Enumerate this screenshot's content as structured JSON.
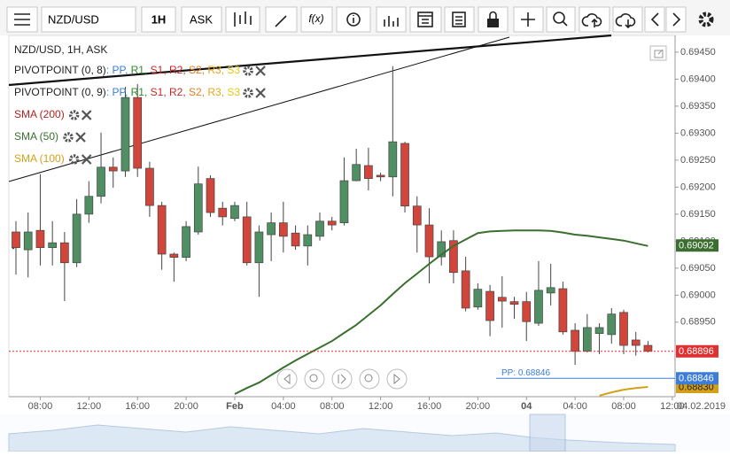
{
  "toolbar": {
    "symbol": "NZD/USD",
    "interval": "1H",
    "price": "ASK",
    "fx": "f(x)"
  },
  "navigator": {
    "date": "04.02.2019"
  },
  "chart_data": {
    "type": "candlestick",
    "title": "NZD/USD, 1H, ASK",
    "categories": [
      null,
      null,
      "08:00",
      null,
      null,
      null,
      "12:00",
      null,
      null,
      null,
      "16:00",
      null,
      null,
      null,
      "20:00",
      null,
      null,
      null,
      "Feb",
      null,
      null,
      null,
      "04:00",
      null,
      null,
      null,
      "08:00",
      null,
      null,
      null,
      "12:00",
      null,
      null,
      null,
      "16:00",
      null,
      null,
      null,
      "20:00",
      null,
      null,
      null,
      "04",
      null,
      null,
      null,
      "04:00",
      null,
      null,
      null,
      "08:00",
      null,
      null,
      null,
      "12:00"
    ],
    "open": [
      0.69117,
      0.69084,
      0.6912,
      0.69088,
      0.69097,
      0.6906,
      0.6915,
      0.69183,
      0.69237,
      0.6923,
      0.69366,
      0.69235,
      0.69166,
      0.69076,
      0.6907,
      0.69117,
      0.69216,
      0.69161,
      0.69142,
      0.69145,
      0.6906,
      0.69112,
      0.69134,
      0.69115,
      0.69091,
      0.69109,
      0.69137,
      0.69134,
      0.69212,
      0.6924,
      0.69222,
      0.69219,
      0.69281,
      0.69165,
      0.6913,
      0.69071,
      0.69101,
      0.69045,
      0.68978,
      0.69007,
      0.68996,
      0.68988,
      0.68988,
      0.68948,
      0.69004,
      0.69012,
      0.68935,
      0.68896,
      0.68929,
      0.68927,
      0.68968,
      0.68917,
      0.68907,
      null,
      null
    ],
    "high": [
      0.69137,
      0.69153,
      0.69224,
      0.69137,
      0.69117,
      0.69178,
      0.69211,
      0.69301,
      0.69255,
      0.69386,
      0.69391,
      0.69247,
      0.69173,
      0.69079,
      0.69137,
      0.69238,
      0.69222,
      0.69173,
      0.69173,
      0.69173,
      0.69129,
      0.69153,
      0.69173,
      0.69129,
      0.69129,
      0.69153,
      0.69145,
      0.69255,
      0.69271,
      0.69273,
      0.69227,
      0.69424,
      0.69284,
      0.69183,
      0.69161,
      0.6912,
      0.6912,
      0.69071,
      0.69022,
      0.69019,
      0.69035,
      0.68997,
      0.69006,
      0.69063,
      0.69058,
      0.69025,
      0.68948,
      0.68965,
      0.68948,
      0.68976,
      0.68973,
      0.68932,
      0.68915,
      null,
      null
    ],
    "low": [
      0.69038,
      0.69033,
      0.69055,
      0.69055,
      0.68989,
      0.69052,
      0.69134,
      0.6917,
      0.69199,
      0.69219,
      0.69219,
      0.69145,
      0.69047,
      0.69025,
      0.69063,
      0.69112,
      0.69145,
      0.69129,
      0.69137,
      0.69055,
      0.68997,
      0.69063,
      0.69079,
      0.69084,
      0.69055,
      0.69101,
      0.6912,
      0.69129,
      0.69211,
      0.69194,
      0.69211,
      0.69183,
      0.69153,
      0.69079,
      0.69022,
      0.69055,
      0.69022,
      0.6897,
      0.68973,
      0.68924,
      0.6894,
      0.68956,
      0.68915,
      0.68943,
      0.68981,
      0.68927,
      0.68871,
      0.68894,
      0.68891,
      0.6891,
      0.68891,
      0.68888,
      0.68894,
      null,
      null
    ],
    "close": [
      0.69088,
      0.69117,
      0.69088,
      0.69097,
      0.6906,
      0.6915,
      0.69183,
      0.69237,
      0.6923,
      0.69366,
      0.69235,
      0.69166,
      0.69076,
      0.6907,
      0.69127,
      0.69206,
      0.69153,
      0.69145,
      0.69166,
      0.6906,
      0.69117,
      0.69134,
      0.69109,
      0.69091,
      0.69112,
      0.69137,
      0.6913,
      0.69212,
      0.69242,
      0.69216,
      0.69219,
      0.69284,
      0.69165,
      0.6913,
      0.69071,
      0.69099,
      0.69042,
      0.68976,
      0.69011,
      0.68953,
      0.68989,
      0.68983,
      0.68951,
      0.69009,
      0.69014,
      0.68932,
      0.68896,
      0.6894,
      0.6894,
      0.68965,
      0.68907,
      0.68907,
      0.68896,
      null,
      null
    ],
    "up_color": "#4f8f63",
    "down_color": "#d1453b",
    "pivots": [
      {
        "name": "PIVOTPOINT (0, 8)"
      },
      {
        "name": "PIVOTPOINT (0, 9)"
      }
    ],
    "pivot_prefix": ": ",
    "pivot_separator": ", ",
    "pivot_levels": [
      {
        "name": "PP",
        "color": "#3b7dd8"
      },
      {
        "name": "R1",
        "color": "#2e8b2e"
      },
      {
        "name": "S1",
        "color": "#c62828"
      },
      {
        "name": "R2",
        "color": "#c62828"
      },
      {
        "name": "S2",
        "color": "#e67e22"
      },
      {
        "name": "R3",
        "color": "#e6a817"
      },
      {
        "name": "S3",
        "color": "#e6c817"
      }
    ],
    "series": [
      {
        "name": "SMA (200)",
        "color": "#b22222"
      },
      {
        "name": "SMA (50)",
        "color": "#3a6f30",
        "axis_label": {
          "value": 0.69092,
          "label": "0.69092"
        },
        "values": [
          null,
          null,
          null,
          null,
          null,
          null,
          null,
          null,
          null,
          null,
          null,
          null,
          null,
          null,
          null,
          null,
          null,
          null,
          0.68817,
          0.68828,
          0.68838,
          0.68852,
          0.68866,
          0.68879,
          0.68891,
          0.68903,
          0.68915,
          0.6893,
          0.68945,
          0.68963,
          0.68981,
          0.69002,
          0.69022,
          0.6904,
          0.69058,
          0.69075,
          0.69091,
          0.69103,
          0.69115,
          0.69118,
          0.69119,
          0.6912,
          0.6912,
          0.6912,
          0.69119,
          0.69116,
          0.69112,
          0.6911,
          0.69107,
          0.69104,
          0.69101,
          0.69096,
          0.69091,
          null,
          null
        ]
      },
      {
        "name": "SMA (100)",
        "color": "#d4a017",
        "axis_label": {
          "value": 0.6883,
          "label": "0.68830"
        },
        "values": [
          null,
          null,
          null,
          null,
          null,
          null,
          null,
          null,
          null,
          null,
          null,
          null,
          null,
          null,
          null,
          null,
          null,
          null,
          null,
          null,
          null,
          null,
          null,
          null,
          null,
          null,
          null,
          null,
          null,
          null,
          null,
          null,
          null,
          null,
          null,
          null,
          null,
          null,
          null,
          null,
          null,
          null,
          null,
          null,
          null,
          null,
          null,
          null,
          0.68814,
          0.6882,
          0.68825,
          0.68828,
          0.6883,
          null,
          null
        ]
      }
    ],
    "pivot_point": {
      "value": 0.68846,
      "label": "PP: 0.68846",
      "axis_label": "0.68846",
      "color": "#3b7dd8"
    },
    "last_price": {
      "value": 0.68896,
      "label": "0.68896",
      "color": "#e03030"
    },
    "ylim": [
      0.68812,
      0.69481
    ],
    "yticks": [
      {
        "value": 0.6945,
        "label": "0.69450"
      },
      {
        "value": 0.694,
        "label": "0.69400"
      },
      {
        "value": 0.6935,
        "label": "0.69350"
      },
      {
        "value": 0.693,
        "label": "0.69300"
      },
      {
        "value": 0.6925,
        "label": "0.69250"
      },
      {
        "value": 0.692,
        "label": "0.69200"
      },
      {
        "value": 0.6915,
        "label": "0.69150"
      },
      {
        "value": 0.691,
        "label": "0.69100"
      },
      {
        "value": 0.6905,
        "label": "0.69050"
      },
      {
        "value": 0.69,
        "label": "0.69000"
      },
      {
        "value": 0.6895,
        "label": "0.68950"
      }
    ]
  }
}
